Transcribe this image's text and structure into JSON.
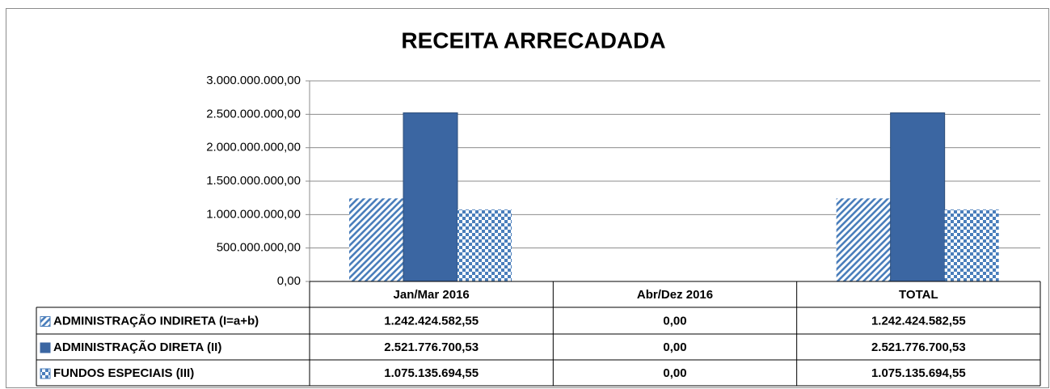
{
  "chart_data": {
    "type": "bar",
    "title": "RECEITA ARRECADADA",
    "categories": [
      "Jan/Mar 2016",
      "Abr/Dez 2016",
      "TOTAL"
    ],
    "series": [
      {
        "name": "ADMINISTRAÇÃO INDIRETA (I=a+b)",
        "color": "#4a7ebb",
        "pattern": "diagonal-stripes",
        "values": [
          1242424582.55,
          0,
          1242424582.55
        ],
        "value_labels": [
          "1.242.424.582,55",
          "0,00",
          "1.242.424.582,55"
        ]
      },
      {
        "name": "ADMINISTRAÇÃO DIRETA (II)",
        "color": "#3b66a2",
        "pattern": "solid",
        "values": [
          2521776700.53,
          0,
          2521776700.53
        ],
        "value_labels": [
          "2.521.776.700,53",
          "0,00",
          "2.521.776.700,53"
        ]
      },
      {
        "name": "FUNDOS ESPECIAIS (III)",
        "color": "#4a7ebb",
        "pattern": "checker",
        "values": [
          1075135694.55,
          0,
          1075135694.55
        ],
        "value_labels": [
          "1.075.135.694,55",
          "0,00",
          "1.075.135.694,55"
        ]
      }
    ],
    "ylim": [
      0,
      3000000000
    ],
    "yticks": [
      {
        "value": 0,
        "label": "0,00"
      },
      {
        "value": 500000000,
        "label": "500.000.000,00"
      },
      {
        "value": 1000000000,
        "label": "1.000.000.000,00"
      },
      {
        "value": 1500000000,
        "label": "1.500.000.000,00"
      },
      {
        "value": 2000000000,
        "label": "2.000.000.000,00"
      },
      {
        "value": 2500000000,
        "label": "2.500.000.000,00"
      },
      {
        "value": 3000000000,
        "label": "3.000.000.000,00"
      }
    ],
    "grid": true,
    "data_table": true
  }
}
